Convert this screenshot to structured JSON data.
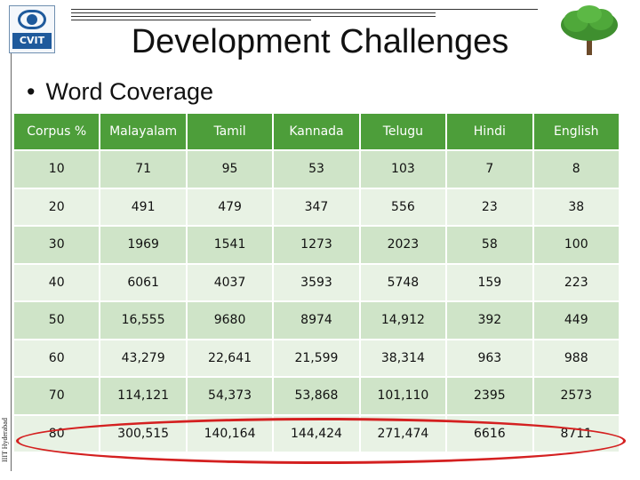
{
  "logo": {
    "text": "CVIT"
  },
  "vertical_label": "IIIT Hyderabad",
  "title": "Development Challenges",
  "bullet": "Word Coverage",
  "table": {
    "headers": [
      "Corpus %",
      "Malayalam",
      "Tamil",
      "Kannada",
      "Telugu",
      "Hindi",
      "English"
    ],
    "rows": [
      [
        "10",
        "71",
        "95",
        "53",
        "103",
        "7",
        "8"
      ],
      [
        "20",
        "491",
        "479",
        "347",
        "556",
        "23",
        "38"
      ],
      [
        "30",
        "1969",
        "1541",
        "1273",
        "2023",
        "58",
        "100"
      ],
      [
        "40",
        "6061",
        "4037",
        "3593",
        "5748",
        "159",
        "223"
      ],
      [
        "50",
        "16,555",
        "9680",
        "8974",
        "14,912",
        "392",
        "449"
      ],
      [
        "60",
        "43,279",
        "22,641",
        "21,599",
        "38,314",
        "963",
        "988"
      ],
      [
        "70",
        "114,121",
        "54,373",
        "53,868",
        "101,110",
        "2395",
        "2573"
      ],
      [
        "80",
        "300,515",
        "140,164",
        "144,424",
        "271,474",
        "6616",
        "8711"
      ]
    ]
  },
  "colors": {
    "header_bg": "#4d9e3a",
    "row_dark": "#cfe4c8",
    "row_light": "#e8f2e4",
    "highlight": "#d42020"
  },
  "icons": {
    "logo": "cvit-eye-logo",
    "tree": "tree-icon"
  }
}
